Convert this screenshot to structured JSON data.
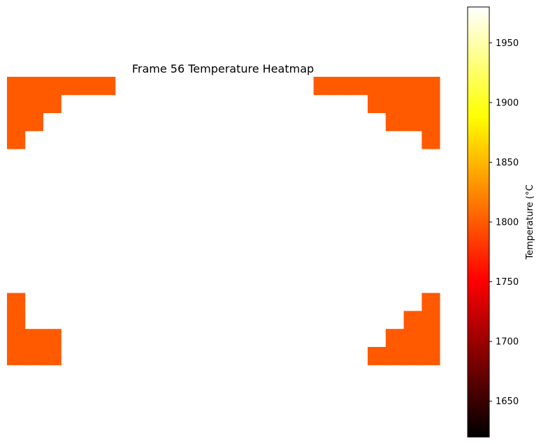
{
  "chart_data": {
    "type": "heatmap",
    "title": "Frame 56 Temperature Heatmap",
    "grid": {
      "rows": 16,
      "cols": 24
    },
    "cell_value": 1800,
    "hot_cells": [
      [
        0,
        0
      ],
      [
        0,
        1
      ],
      [
        0,
        2
      ],
      [
        0,
        3
      ],
      [
        0,
        4
      ],
      [
        0,
        5
      ],
      [
        1,
        0
      ],
      [
        1,
        1
      ],
      [
        1,
        2
      ],
      [
        2,
        0
      ],
      [
        2,
        1
      ],
      [
        3,
        0
      ],
      [
        0,
        17
      ],
      [
        0,
        18
      ],
      [
        0,
        19
      ],
      [
        0,
        20
      ],
      [
        0,
        21
      ],
      [
        0,
        22
      ],
      [
        0,
        23
      ],
      [
        1,
        20
      ],
      [
        1,
        21
      ],
      [
        1,
        22
      ],
      [
        1,
        23
      ],
      [
        2,
        21
      ],
      [
        2,
        22
      ],
      [
        2,
        23
      ],
      [
        3,
        23
      ],
      [
        12,
        0
      ],
      [
        13,
        0
      ],
      [
        14,
        0
      ],
      [
        14,
        1
      ],
      [
        14,
        2
      ],
      [
        15,
        0
      ],
      [
        15,
        1
      ],
      [
        15,
        2
      ],
      [
        12,
        23
      ],
      [
        13,
        22
      ],
      [
        13,
        23
      ],
      [
        14,
        21
      ],
      [
        14,
        22
      ],
      [
        14,
        23
      ],
      [
        15,
        20
      ],
      [
        15,
        21
      ],
      [
        15,
        22
      ],
      [
        15,
        23
      ]
    ],
    "colormap": "hot",
    "colorbar": {
      "label": "Temperature (°C",
      "range": [
        1620,
        1980
      ],
      "ticks": [
        "1650",
        "1700",
        "1750",
        "1800",
        "1850",
        "1900",
        "1950"
      ]
    },
    "axes_visible": false
  },
  "colors": {
    "hot_cell": "#ff5a00",
    "background": "#ffffff"
  }
}
